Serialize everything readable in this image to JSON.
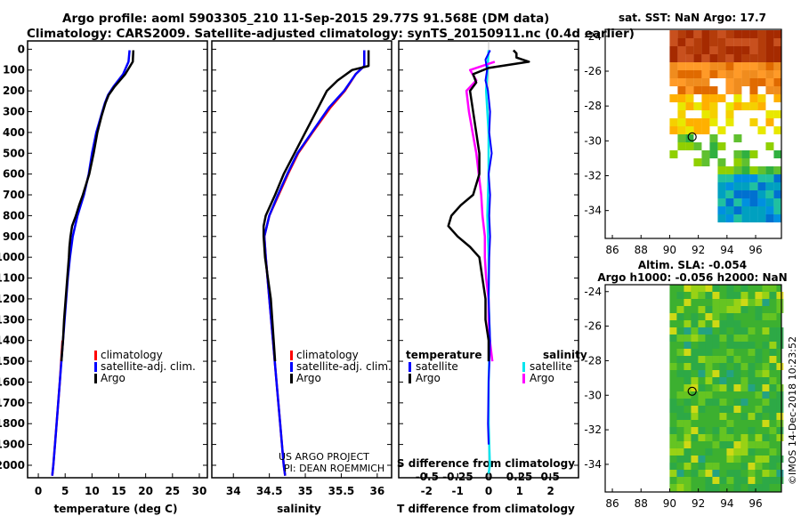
{
  "header": {
    "line1": "Argo profile: aoml 5903305_210 11-Sep-2015 29.77S 91.568E (DM data)",
    "line2": "Climatology: CARS2009. Satellite-adjusted climatology: synTS_20150911.nc (0.4d earlier)"
  },
  "map_top": {
    "title": "sat. SST: NaN Argo: 17.7",
    "yticks": [
      "-24",
      "-26",
      "-28",
      "-30",
      "-32",
      "-34"
    ],
    "xticks": [
      "86",
      "88",
      "90",
      "92",
      "94",
      "96"
    ]
  },
  "map_bottom": {
    "title1": "Altim. SLA: -0.054",
    "title2": "Argo h1000: -0.056 h2000: NaN",
    "yticks": [
      "-24",
      "-26",
      "-28",
      "-30",
      "-32",
      "-34"
    ],
    "xticks": [
      "86",
      "88",
      "90",
      "92",
      "94",
      "96"
    ]
  },
  "credit": "©IMOS 14-Dec-2018 10:23:52",
  "project": {
    "line1": "US ARGO PROJECT",
    "line2": "PI: DEAN ROEMMICH"
  },
  "colors": {
    "climatology": "#ff0000",
    "satellite": "#0000ff",
    "argo": "#000000",
    "sat_s": "#00e5ee",
    "argo_s": "#ff00ff"
  },
  "chart_data": [
    {
      "type": "line",
      "xlabel": "temperature (deg C)",
      "ylabel": "",
      "xticks": [
        "0",
        "5",
        "10",
        "15",
        "20",
        "25",
        "30"
      ],
      "yticks": [
        "0",
        "100",
        "200",
        "300",
        "400",
        "500",
        "600",
        "700",
        "800",
        "900",
        "1000",
        "1100",
        "1200",
        "1300",
        "1400",
        "1500",
        "1600",
        "1700",
        "1800",
        "1900",
        "2000"
      ],
      "xlim": [
        -2,
        31.5
      ],
      "ylim": [
        2060,
        -40
      ],
      "legend": [
        "climatology",
        "satellite-adj. clim.",
        "Argo"
      ],
      "series": [
        {
          "name": "climatology",
          "depth": [
            1400,
            1600,
            1800,
            2000,
            2050
          ],
          "values": [
            4.5,
            4.0,
            3.4,
            2.8,
            2.6
          ]
        },
        {
          "name": "satellite-adj. clim.",
          "depth": [
            5,
            60,
            120,
            180,
            220,
            260,
            320,
            400,
            500,
            600,
            700,
            800,
            900,
            1000,
            1100,
            1200,
            1300,
            1400,
            1500,
            1600,
            1700,
            1800,
            1900,
            2000,
            2050
          ],
          "values": [
            17.0,
            16.8,
            15.8,
            14.0,
            13.0,
            12.4,
            11.7,
            10.8,
            10.0,
            9.4,
            8.5,
            7.3,
            6.4,
            5.9,
            5.5,
            5.2,
            4.9,
            4.6,
            4.3,
            4.0,
            3.7,
            3.4,
            3.1,
            2.8,
            2.6
          ]
        },
        {
          "name": "Argo",
          "depth": [
            5,
            60,
            120,
            180,
            220,
            260,
            320,
            400,
            500,
            600,
            700,
            750,
            800,
            850,
            900,
            950,
            1000,
            1100,
            1200,
            1300,
            1400,
            1500
          ],
          "values": [
            17.7,
            17.6,
            16.2,
            14.2,
            13.1,
            12.5,
            11.8,
            11.0,
            10.3,
            9.5,
            8.3,
            7.6,
            7.0,
            6.3,
            6.0,
            5.8,
            5.7,
            5.4,
            5.1,
            4.8,
            4.6,
            4.3
          ]
        }
      ]
    },
    {
      "type": "line",
      "xlabel": "salinity",
      "ylabel": "",
      "xticks": [
        "34",
        "34.5",
        "35",
        "35.5",
        "36"
      ],
      "xlim": [
        33.7,
        36.2
      ],
      "ylim": [
        2060,
        -40
      ],
      "legend": [
        "climatology",
        "satellite-adj. clim.",
        "Argo"
      ],
      "series": [
        {
          "name": "climatology",
          "depth": [
            5,
            80,
            120,
            200,
            280,
            400,
            500,
            600,
            700,
            800,
            900,
            1000,
            1200,
            1400,
            1600,
            1800,
            2000,
            2050
          ],
          "values": [
            35.82,
            35.82,
            35.7,
            35.55,
            35.35,
            35.1,
            34.9,
            34.76,
            34.63,
            34.5,
            34.43,
            34.45,
            34.5,
            34.55,
            34.6,
            34.65,
            34.7,
            34.72
          ]
        },
        {
          "name": "satellite-adj. clim.",
          "depth": [
            5,
            80,
            120,
            200,
            280,
            400,
            500,
            600,
            700,
            800,
            900,
            1000,
            1200,
            1400,
            1600,
            1800,
            2000,
            2050
          ],
          "values": [
            35.82,
            35.82,
            35.7,
            35.54,
            35.33,
            35.09,
            34.89,
            34.75,
            34.62,
            34.5,
            34.43,
            34.45,
            34.5,
            34.55,
            34.6,
            34.65,
            34.7,
            34.72
          ]
        },
        {
          "name": "Argo",
          "depth": [
            5,
            80,
            100,
            150,
            200,
            300,
            400,
            500,
            600,
            700,
            800,
            850,
            900,
            1000,
            1100,
            1200,
            1300,
            1400,
            1500
          ],
          "values": [
            35.88,
            35.88,
            35.65,
            35.45,
            35.3,
            35.15,
            35.0,
            34.85,
            34.7,
            34.58,
            34.45,
            34.42,
            34.42,
            34.44,
            34.48,
            34.52,
            34.54,
            34.56,
            34.58
          ]
        }
      ]
    },
    {
      "type": "line",
      "xlabel": "T difference from climatology",
      "xlabel2": "S difference from climatology",
      "xticks": [
        "-2",
        "-1",
        "0",
        "1",
        "2"
      ],
      "xticks2": [
        "-0.5",
        "-0.25",
        "0",
        "0.25",
        "0.5"
      ],
      "xlim": [
        -2.9,
        2.9
      ],
      "ylim": [
        2060,
        -40
      ],
      "legend_left_title": "temperature",
      "legend_right_title": "salinity",
      "legend_left": [
        "satellite",
        "Argo"
      ],
      "legend_right": [
        "satellite",
        "Argo"
      ],
      "series": [
        {
          "name": "satellite",
          "depth": [
            5,
            50,
            100,
            150,
            200,
            300,
            400,
            500,
            600,
            700,
            800,
            900,
            1000,
            1200,
            1400,
            1600,
            1800,
            1900
          ],
          "values": [
            0.05,
            -0.1,
            -0.05,
            -0.1,
            -0.02,
            0.05,
            0.02,
            0.1,
            0.0,
            0.05,
            0.02,
            0.05,
            0.02,
            0.0,
            0.05,
            0.0,
            -0.02,
            0.0
          ]
        },
        {
          "name": "Argo",
          "depth": [
            5,
            20,
            40,
            60,
            90,
            120,
            160,
            200,
            300,
            400,
            500,
            600,
            700,
            750,
            800,
            850,
            900,
            950,
            1000,
            1100,
            1200,
            1300,
            1400,
            1500
          ],
          "values": [
            0.8,
            0.9,
            0.9,
            1.3,
            0.0,
            -0.5,
            -0.4,
            -0.6,
            -0.5,
            -0.4,
            -0.3,
            -0.3,
            -0.5,
            -0.9,
            -1.2,
            -1.3,
            -1.0,
            -0.6,
            -0.3,
            -0.2,
            -0.1,
            -0.1,
            0.0,
            0.0
          ]
        },
        {
          "name": "satellite S",
          "depth": [
            5,
            200,
            400,
            600,
            800,
            1000,
            1200,
            1400,
            1600,
            1800,
            2000,
            2040
          ],
          "values": [
            0.0,
            -0.02,
            0.0,
            0.0,
            -0.01,
            0.0,
            0.0,
            0.01,
            0.0,
            0.0,
            0.01,
            0.0
          ]
        },
        {
          "name": "Argo S",
          "depth": [
            60,
            100,
            150,
            200,
            300,
            400,
            500,
            600,
            700,
            800,
            900,
            1000,
            1100,
            1200,
            1300,
            1400,
            1500
          ],
          "values": [
            0.05,
            -0.15,
            -0.1,
            -0.18,
            -0.16,
            -0.13,
            -0.1,
            -0.08,
            -0.06,
            -0.05,
            -0.03,
            -0.03,
            -0.02,
            0.0,
            0.0,
            0.01,
            0.03
          ]
        }
      ]
    }
  ]
}
